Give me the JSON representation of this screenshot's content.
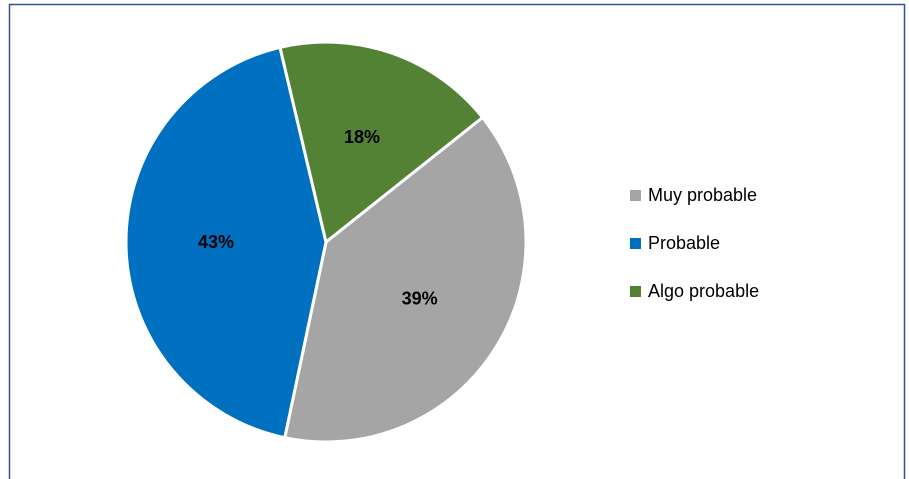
{
  "chart_data": {
    "type": "pie",
    "categories": [
      "Muy probable",
      "Probable",
      "Algo probable"
    ],
    "values": [
      39,
      43,
      18
    ],
    "value_labels": [
      "39%",
      "43%",
      "18%"
    ],
    "colors": [
      "#a5a5a5",
      "#0070c0",
      "#548235"
    ],
    "legend": "right"
  }
}
